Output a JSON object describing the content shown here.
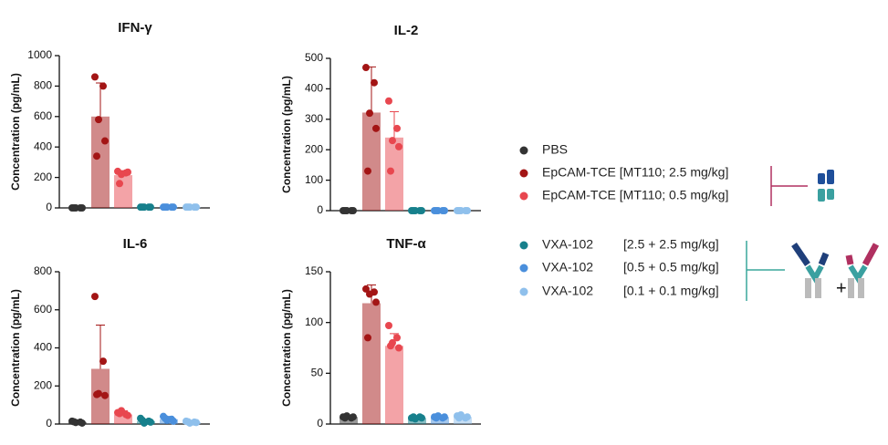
{
  "legend": {
    "entries": [
      {
        "name": "PBS",
        "color": "#333333"
      },
      {
        "name": "EpCAM-TCE [MT110; 2.5 mg/kg]",
        "color": "#a31515"
      },
      {
        "name": "EpCAM-TCE [MT110; 0.5 mg/kg]",
        "color": "#e8474f"
      },
      {
        "name": "VXA-102",
        "dose": "[2.5 + 2.5 mg/kg]",
        "color": "#17808c"
      },
      {
        "name": "VXA-102",
        "dose": "[0.5 + 0.5 mg/kg]",
        "color": "#4a8fdc"
      },
      {
        "name": "VXA-102",
        "dose": "[0.1 + 0.1 mg/kg]",
        "color": "#8fc0ec"
      }
    ]
  },
  "chart_data": [
    {
      "type": "bar",
      "title": "IFN-γ",
      "ylabel": "Concentration (pg/mL)",
      "ylim": [
        0,
        1000
      ],
      "yticks": [
        0,
        200,
        400,
        600,
        800,
        1000
      ],
      "values": [
        0,
        600,
        215,
        5,
        5,
        5
      ],
      "errors": [
        0,
        220,
        30,
        0,
        0,
        0
      ],
      "points": [
        [
          0,
          0,
          0,
          0,
          0
        ],
        [
          860,
          800,
          580,
          440,
          340
        ],
        [
          240,
          230,
          220,
          235,
          160
        ],
        [
          5,
          5,
          5,
          5,
          5
        ],
        [
          5,
          5,
          5,
          5,
          5
        ],
        [
          5,
          5,
          5,
          5,
          5
        ]
      ]
    },
    {
      "type": "bar",
      "title": "IL-2",
      "ylabel": "Concentration (pg/mL)",
      "ylim": [
        0,
        500
      ],
      "yticks": [
        0,
        100,
        200,
        300,
        400,
        500
      ],
      "values": [
        0,
        322,
        240,
        0,
        0,
        0
      ],
      "errors": [
        0,
        150,
        85,
        0,
        0,
        0
      ],
      "points": [
        [
          0,
          0,
          0,
          0,
          0
        ],
        [
          470,
          420,
          320,
          270,
          130
        ],
        [
          360,
          270,
          230,
          210,
          130
        ],
        [
          0,
          0,
          0,
          0,
          0
        ],
        [
          0,
          0,
          0,
          0,
          0
        ],
        [
          0,
          0,
          0,
          0,
          0
        ]
      ]
    },
    {
      "type": "bar",
      "title": "IL-6",
      "ylabel": "Concentration (pg/mL)",
      "ylim": [
        0,
        800
      ],
      "yticks": [
        0,
        200,
        400,
        600,
        800
      ],
      "values": [
        10,
        290,
        50,
        15,
        25,
        10
      ],
      "errors": [
        5,
        230,
        20,
        10,
        15,
        5
      ],
      "points": [
        [
          15,
          10,
          8,
          5,
          12
        ],
        [
          670,
          330,
          160,
          150,
          155
        ],
        [
          60,
          50,
          70,
          45,
          55
        ],
        [
          30,
          15,
          5,
          10,
          20
        ],
        [
          40,
          25,
          20,
          15,
          30
        ],
        [
          15,
          10,
          5,
          8,
          12
        ]
      ]
    },
    {
      "type": "bar",
      "title": "TNF-α",
      "ylabel": "Concentration (pg/mL)",
      "ylim": [
        0,
        150
      ],
      "yticks": [
        0,
        50,
        100,
        150
      ],
      "values": [
        7,
        119,
        77,
        6,
        7,
        7
      ],
      "errors": [
        1,
        18,
        12,
        1,
        1,
        2
      ],
      "points": [
        [
          7,
          6,
          8,
          7,
          6
        ],
        [
          133,
          130,
          128,
          120,
          85
        ],
        [
          97,
          85,
          80,
          75,
          77
        ],
        [
          6,
          7,
          5,
          6,
          7
        ],
        [
          7,
          6,
          8,
          7,
          6
        ],
        [
          8,
          6,
          9,
          7,
          6
        ]
      ]
    }
  ]
}
